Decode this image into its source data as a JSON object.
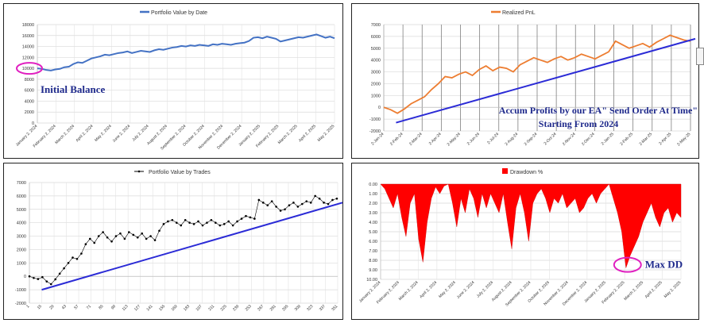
{
  "chart_data": [
    {
      "id": "p1",
      "type": "line",
      "title": "Portfolio Value by Date",
      "legend": "top",
      "grid": true,
      "color": "#4472c4",
      "ylim": [
        0,
        18000
      ],
      "yticks": [
        0,
        2000,
        4000,
        6000,
        8000,
        10000,
        12000,
        14000,
        16000,
        18000
      ],
      "xticks": [
        "January 2, 2024",
        "February 2, 2024",
        "March 2, 2024",
        "April 2, 2024",
        "May 2, 2024",
        "June 2, 2024",
        "July 2, 2024",
        "August 2, 2024",
        "September 2, 2024",
        "October 2, 2024",
        "November 2, 2024",
        "December 2, 2024",
        "January 2, 2025",
        "February 2, 2025",
        "March 2, 2025",
        "April 2, 2025",
        "May 2, 2025"
      ],
      "values": [
        10000,
        9900,
        9700,
        9600,
        9800,
        9900,
        10200,
        10300,
        10800,
        11100,
        11000,
        11400,
        11800,
        12000,
        12200,
        12500,
        12400,
        12600,
        12800,
        12900,
        13100,
        12800,
        13000,
        13200,
        13100,
        13000,
        13300,
        13500,
        13400,
        13600,
        13800,
        13900,
        14100,
        14000,
        14200,
        14100,
        14300,
        14200,
        14100,
        14400,
        14300,
        14500,
        14400,
        14300,
        14500,
        14600,
        14700,
        15000,
        15600,
        15700,
        15500,
        15800,
        15600,
        15400,
        14900,
        15100,
        15300,
        15500,
        15700,
        15600,
        15800,
        16000,
        16200,
        15900,
        15600,
        15800,
        15500
      ],
      "annotations": [
        {
          "label": "Initial Balance",
          "x_index": 0,
          "y": 10000
        }
      ]
    },
    {
      "id": "p2",
      "type": "line",
      "title": "Realized PnL",
      "legend": "top",
      "grid": true,
      "color": "#ed7d31",
      "ylim": [
        -2000,
        7000
      ],
      "yticks": [
        -2000,
        -1000,
        0,
        1000,
        2000,
        3000,
        4000,
        5000,
        6000,
        7000
      ],
      "xticks": [
        "2-Jan-24",
        "2-Feb-24",
        "2-Mar-24",
        "2-Apr-24",
        "2-May-24",
        "2-Jun-24",
        "2-Jul-24",
        "2-Aug-24",
        "2-Sep-24",
        "2-Oct-24",
        "2-Nov-24",
        "2-Dec-24",
        "2-Jan-25",
        "2-Feb-25",
        "2-Mar-25",
        "2-Apr-25",
        "2-May-25"
      ],
      "values": [
        0,
        -200,
        -500,
        -150,
        300,
        600,
        900,
        1500,
        2000,
        2600,
        2500,
        2800,
        3000,
        2700,
        3200,
        3500,
        3100,
        3400,
        3300,
        3000,
        3600,
        3900,
        4200,
        4000,
        3800,
        4100,
        4300,
        4000,
        4200,
        4500,
        4300,
        4100,
        4400,
        4700,
        5600,
        5300,
        5000,
        5200,
        5400,
        5100,
        5500,
        5800,
        6100,
        5900,
        5700,
        5600
      ],
      "trend": {
        "from": -1300,
        "to": 5800
      },
      "annotations": [
        {
          "label": "Accum Profits by our EA\" Send Order At Time\""
        },
        {
          "label": "Starting From 2024"
        }
      ]
    },
    {
      "id": "p3",
      "type": "scatter",
      "title": "Portfolio Value by Trades",
      "legend": "top",
      "grid": true,
      "color": "#000000",
      "ylim": [
        -2000,
        7000
      ],
      "yticks": [
        -2000,
        -1000,
        0,
        1000,
        2000,
        3000,
        4000,
        5000,
        6000,
        7000
      ],
      "xlim": [
        1,
        357
      ],
      "xticks": [
        "1",
        "15",
        "29",
        "43",
        "57",
        "71",
        "85",
        "99",
        "113",
        "127",
        "141",
        "155",
        "169",
        "183",
        "197",
        "211",
        "225",
        "239",
        "253",
        "267",
        "281",
        "295",
        "309",
        "323",
        "337",
        "351"
      ],
      "points": [
        [
          1,
          0
        ],
        [
          6,
          -120
        ],
        [
          11,
          -200
        ],
        [
          16,
          -60
        ],
        [
          21,
          -380
        ],
        [
          26,
          -580
        ],
        [
          31,
          -220
        ],
        [
          36,
          200
        ],
        [
          41,
          600
        ],
        [
          46,
          1000
        ],
        [
          51,
          1400
        ],
        [
          56,
          1300
        ],
        [
          61,
          1700
        ],
        [
          66,
          2400
        ],
        [
          71,
          2800
        ],
        [
          76,
          2500
        ],
        [
          81,
          3000
        ],
        [
          86,
          3300
        ],
        [
          91,
          2900
        ],
        [
          96,
          2600
        ],
        [
          101,
          3000
        ],
        [
          106,
          3200
        ],
        [
          111,
          2800
        ],
        [
          116,
          3300
        ],
        [
          121,
          3100
        ],
        [
          126,
          2900
        ],
        [
          131,
          3200
        ],
        [
          136,
          2800
        ],
        [
          141,
          3000
        ],
        [
          146,
          2700
        ],
        [
          151,
          3400
        ],
        [
          156,
          3900
        ],
        [
          161,
          4100
        ],
        [
          166,
          4200
        ],
        [
          171,
          4000
        ],
        [
          176,
          3800
        ],
        [
          181,
          4200
        ],
        [
          186,
          4000
        ],
        [
          191,
          3900
        ],
        [
          196,
          4100
        ],
        [
          201,
          3800
        ],
        [
          206,
          4000
        ],
        [
          211,
          4200
        ],
        [
          216,
          4000
        ],
        [
          221,
          3800
        ],
        [
          226,
          3900
        ],
        [
          231,
          4100
        ],
        [
          236,
          3800
        ],
        [
          241,
          4100
        ],
        [
          246,
          4300
        ],
        [
          251,
          4500
        ],
        [
          256,
          4400
        ],
        [
          261,
          4300
        ],
        [
          266,
          5700
        ],
        [
          271,
          5500
        ],
        [
          276,
          5300
        ],
        [
          281,
          5600
        ],
        [
          286,
          5200
        ],
        [
          291,
          4900
        ],
        [
          296,
          5000
        ],
        [
          301,
          5300
        ],
        [
          306,
          5500
        ],
        [
          311,
          5200
        ],
        [
          316,
          5400
        ],
        [
          321,
          5600
        ],
        [
          326,
          5500
        ],
        [
          331,
          6000
        ],
        [
          336,
          5800
        ],
        [
          341,
          5500
        ],
        [
          346,
          5400
        ],
        [
          351,
          5700
        ],
        [
          356,
          5800
        ]
      ],
      "trend": {
        "from": -1000,
        "to": 5500
      }
    },
    {
      "id": "p4",
      "type": "area",
      "title": "Drawdown %",
      "legend": "top",
      "grid": true,
      "color": "#ff0000",
      "ylim": [
        0,
        10
      ],
      "y_inverted": true,
      "yticks": [
        "0.00",
        "1.00",
        "2.00",
        "3.00",
        "4.00",
        "5.00",
        "6.00",
        "7.00",
        "8.00",
        "9.00",
        "10.00"
      ],
      "xticks": [
        "January 2, 2024",
        "February 2, 2024",
        "March 2, 2024",
        "April 2, 2024",
        "May 2, 2024",
        "June 2, 2024",
        "July 2, 2024",
        "August 2, 2024",
        "September 2, 2024",
        "October 2, 2024",
        "November 2, 2024",
        "December 2, 2024",
        "January 2, 2025",
        "February 2, 2025",
        "March 2, 2025",
        "April 2, 2025",
        "May 2, 2025"
      ],
      "values": [
        0,
        0.5,
        1.5,
        2.5,
        1.0,
        3.5,
        5.5,
        2.0,
        1.0,
        5.8,
        8.2,
        4.0,
        1.5,
        0.3,
        1.0,
        0.2,
        0,
        2.0,
        4.5,
        1.5,
        3.0,
        0.5,
        1.5,
        3.5,
        1.0,
        2.5,
        1.0,
        2.0,
        3.0,
        1.0,
        4.0,
        6.8,
        2.5,
        1.0,
        3.0,
        6.0,
        2.0,
        1.0,
        0.5,
        1.5,
        3.0,
        1.5,
        2.0,
        1.0,
        2.5,
        2.0,
        1.5,
        3.0,
        2.5,
        1.5,
        1.0,
        2.0,
        1.0,
        0.5,
        0,
        1.5,
        3.0,
        5.0,
        8.8,
        7.5,
        6.5,
        5.5,
        4.0,
        3.0,
        2.0,
        3.5,
        4.5,
        3.0,
        2.5,
        4.0,
        3.0,
        3.5
      ],
      "annotations": [
        {
          "label": "Max DD",
          "x_index": 58,
          "y": 8.8
        }
      ]
    }
  ]
}
